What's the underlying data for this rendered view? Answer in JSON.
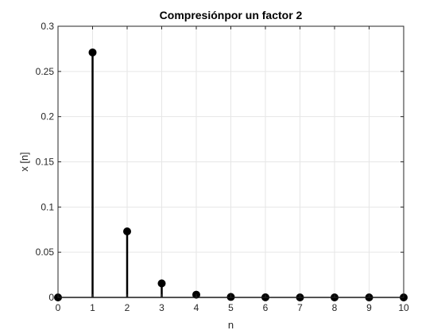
{
  "chart_data": {
    "type": "stem",
    "title": "Compresiónpor un factor 2",
    "xlabel": "n",
    "ylabel": "x [n]",
    "xlim": [
      0,
      10
    ],
    "ylim": [
      0,
      0.3
    ],
    "xticks": [
      "0",
      "1",
      "2",
      "3",
      "4",
      "5",
      "6",
      "7",
      "8",
      "9",
      "10"
    ],
    "yticks": [
      "0",
      "0.05",
      "0.1",
      "0.15",
      "0.2",
      "0.25",
      "0.3"
    ],
    "grid": true,
    "x": [
      0,
      1,
      2,
      3,
      4,
      5,
      6,
      7,
      8,
      9,
      10
    ],
    "values": [
      0,
      0.271,
      0.073,
      0.0155,
      0.003,
      0.0005,
      0.0001,
      0,
      0,
      0,
      0
    ],
    "color": "#000000",
    "grid_color": "#e6e6e6",
    "axis_color": "#262626"
  }
}
